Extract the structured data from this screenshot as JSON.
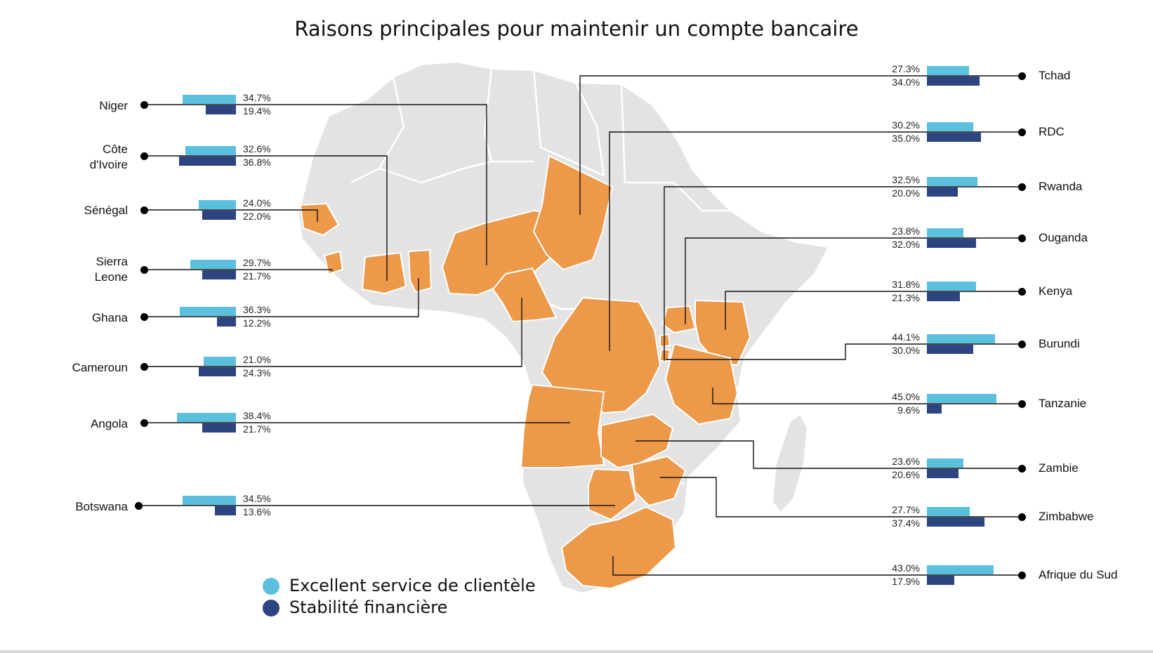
{
  "title": "Raisons principales pour maintenir un compte bancaire",
  "colors": {
    "service": "#5bc0de",
    "stability": "#2e4480",
    "highlight": "#ec9a4a",
    "land": "#e3e3e3"
  },
  "legend": {
    "service": "Excellent service de clientèle",
    "stability": "Stabilité financière"
  },
  "chart_data": {
    "type": "bar",
    "series": [
      {
        "name": "Excellent service de clientèle",
        "key": "service"
      },
      {
        "name": "Stabilité financière",
        "key": "stability"
      }
    ],
    "left": [
      {
        "name": "Niger",
        "service": 34.7,
        "stability": 19.4,
        "service_label": "34.7%",
        "stability_label": "19.4%"
      },
      {
        "name": "Côte d'Ivoire",
        "service": 32.6,
        "stability": 36.8,
        "service_label": "32.6%",
        "stability_label": "36.8%"
      },
      {
        "name": "Sénégal",
        "service": 24.0,
        "stability": 22.0,
        "service_label": "24.0%",
        "stability_label": "22.0%"
      },
      {
        "name": "Sierra Leone",
        "service": 29.7,
        "stability": 21.7,
        "service_label": "29.7%",
        "stability_label": "21.7%"
      },
      {
        "name": "Ghana",
        "service": 36.3,
        "stability": 12.2,
        "service_label": "36.3%",
        "stability_label": "12.2%"
      },
      {
        "name": "Cameroun",
        "service": 21.0,
        "stability": 24.3,
        "service_label": "21.0%",
        "stability_label": "24.3%"
      },
      {
        "name": "Angola",
        "service": 38.4,
        "stability": 21.7,
        "service_label": "38.4%",
        "stability_label": "21.7%"
      },
      {
        "name": "Botswana",
        "service": 34.5,
        "stability": 13.6,
        "service_label": "34.5%",
        "stability_label": "13.6%"
      }
    ],
    "right": [
      {
        "name": "Tchad",
        "service": 27.3,
        "stability": 34.0,
        "service_label": "27.3%",
        "stability_label": "34.0%"
      },
      {
        "name": "RDC",
        "service": 30.2,
        "stability": 35.0,
        "service_label": "30.2%",
        "stability_label": "35.0%"
      },
      {
        "name": "Rwanda",
        "service": 32.5,
        "stability": 20.0,
        "service_label": "32.5%",
        "stability_label": "20.0%"
      },
      {
        "name": "Ouganda",
        "service": 23.8,
        "stability": 32.0,
        "service_label": "23.8%",
        "stability_label": "32.0%"
      },
      {
        "name": "Kenya",
        "service": 31.8,
        "stability": 21.3,
        "service_label": "31.8%",
        "stability_label": "21.3%"
      },
      {
        "name": "Burundi",
        "service": 44.1,
        "stability": 30.0,
        "service_label": "44.1%",
        "stability_label": "30.0%"
      },
      {
        "name": "Tanzanie",
        "service": 45.0,
        "stability": 9.6,
        "service_label": "45.0%",
        "stability_label": "9.6%"
      },
      {
        "name": "Zambie",
        "service": 23.6,
        "stability": 20.6,
        "service_label": "23.6%",
        "stability_label": "20.6%"
      },
      {
        "name": "Zimbabwe",
        "service": 27.7,
        "stability": 37.4,
        "service_label": "27.7%",
        "stability_label": "37.4%"
      },
      {
        "name": "Afrique du Sud",
        "service": 43.0,
        "stability": 17.9,
        "service_label": "43.0%",
        "stability_label": "17.9%"
      }
    ]
  }
}
